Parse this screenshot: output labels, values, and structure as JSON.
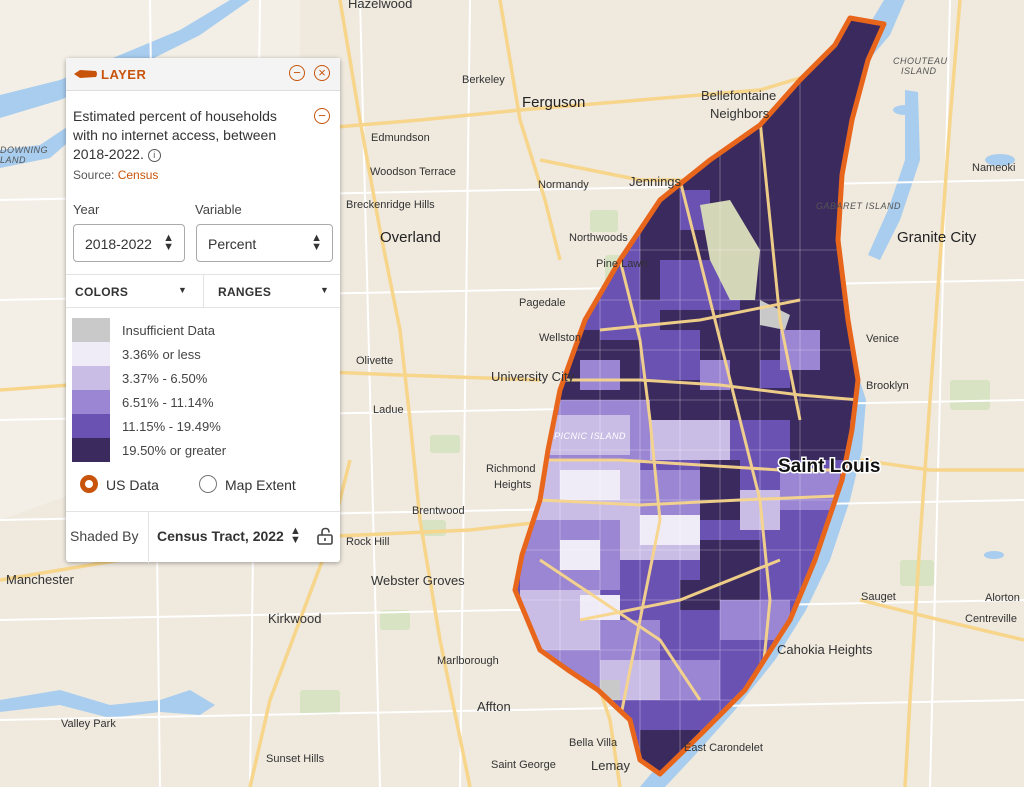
{
  "map": {
    "places": {
      "hazelwood": "Hazelwood",
      "berkeley": "Berkeley",
      "ferguson": "Ferguson",
      "bellefontaine": "Bellefontaine",
      "neighbors": "Neighbors",
      "chouteau1": "CHOUTEAU",
      "chouteau2": "ISLAND",
      "edmundson": "Edmundson",
      "woodson": "Woodson Terrace",
      "normandy": "Normandy",
      "jennings": "Jennings",
      "nameoki": "Nameoki",
      "breckenridge": "Breckenridge Hills",
      "overland": "Overland",
      "northwoods": "Northwoods",
      "gabaret": "GABARET ISLAND",
      "granite": "Granite City",
      "pinelawn": "Pine Lawn",
      "pagedale": "Pagedale",
      "wellston": "Wellston",
      "olivette": "Olivette",
      "venice": "Venice",
      "university": "University City",
      "brooklyn": "Brooklyn",
      "ladue": "Ladue",
      "picnic": "PICNIC ISLAND",
      "stlouis": "Saint Louis",
      "richmond1": "Richmond",
      "richmond2": "Heights",
      "brentwood": "Brentwood",
      "rockhill": "Rock Hill",
      "manchester": "Manchester",
      "webster": "Webster Groves",
      "sauget": "Sauget",
      "alorton": "Alorton",
      "centreville": "Centreville",
      "kirkwood": "Kirkwood",
      "cahokia": "Cahokia Heights",
      "marlborough": "Marlborough",
      "affton": "Affton",
      "valleypark": "Valley Park",
      "bellavilla": "Bella Villa",
      "eastcarondelet": "East Carondelet",
      "sunset": "Sunset Hills",
      "stgeorge": "Saint George",
      "lemay": "Lemay",
      "downing1": "DOWNING",
      "downing2": "LAND"
    }
  },
  "panel": {
    "title": "LAYER",
    "description": "Estimated percent of households with no internet access, between 2018-2022.",
    "info_icon": "i",
    "source_label": "Source:",
    "source_link": "Census",
    "year_label": "Year",
    "variable_label": "Variable",
    "year_value": "2018-2022",
    "variable_value": "Percent",
    "colors_tab": "COLORS",
    "ranges_tab": "RANGES",
    "legend": [
      {
        "label": "Insufficient Data",
        "color": "#c9c9c9"
      },
      {
        "label": "3.36% or less",
        "color": "#efecf7"
      },
      {
        "label": "3.37% - 6.50%",
        "color": "#c9bde6"
      },
      {
        "label": "6.51% - 11.14%",
        "color": "#9a86d2"
      },
      {
        "label": "11.15% - 19.49%",
        "color": "#6a52b3"
      },
      {
        "label": "19.50% or greater",
        "color": "#3b2a5e"
      }
    ],
    "radio_us": "US Data",
    "radio_extent": "Map Extent",
    "radio_selected": "US Data",
    "shaded_by_label": "Shaded By",
    "shaded_by_value": "Census Tract, 2022",
    "accent_color": "#c8540c"
  }
}
